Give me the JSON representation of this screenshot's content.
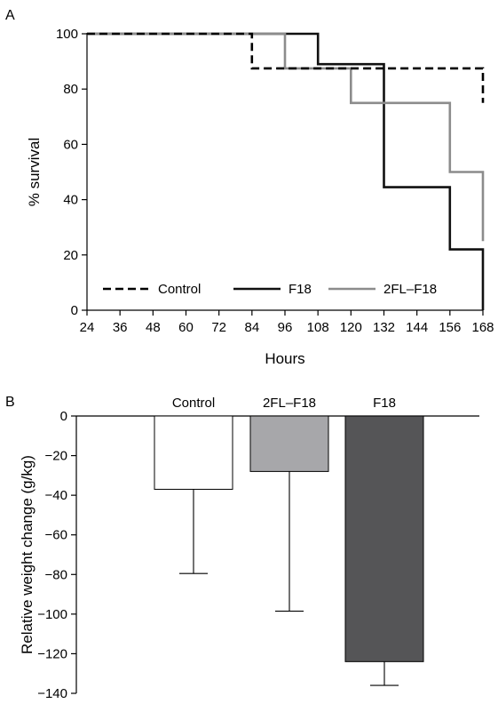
{
  "panels": [
    {
      "letter": "A",
      "chart_data": {
        "type": "line",
        "step": true,
        "xlabel": "Hours",
        "ylabel": "% survival",
        "xlim": [
          24,
          168
        ],
        "ylim": [
          0,
          100
        ],
        "xticks": [
          24,
          36,
          48,
          60,
          72,
          84,
          96,
          108,
          120,
          132,
          144,
          156,
          168
        ],
        "yticks": [
          0,
          20,
          40,
          60,
          80,
          100
        ],
        "legend_position": "bottom",
        "series": [
          {
            "name": "Control",
            "color": "#000000",
            "dash": "dashed",
            "points": [
              [
                24,
                100
              ],
              [
                84,
                100
              ],
              [
                84,
                87.5
              ],
              [
                168,
                87.5
              ],
              [
                168,
                75
              ]
            ]
          },
          {
            "name": "F18",
            "color": "#111111",
            "dash": "solid",
            "points": [
              [
                24,
                100
              ],
              [
                108,
                100
              ],
              [
                108,
                89
              ],
              [
                132,
                89
              ],
              [
                132,
                44.5
              ],
              [
                156,
                44.5
              ],
              [
                156,
                22
              ],
              [
                168,
                22
              ],
              [
                168,
                0
              ]
            ]
          },
          {
            "name": "2FL–F18",
            "color": "#8c8c8c",
            "dash": "solid",
            "points": [
              [
                24,
                100
              ],
              [
                96,
                100
              ],
              [
                96,
                87.5
              ],
              [
                120,
                87.5
              ],
              [
                120,
                75
              ],
              [
                156,
                75
              ],
              [
                156,
                50
              ],
              [
                168,
                50
              ],
              [
                168,
                25
              ]
            ]
          }
        ]
      }
    },
    {
      "letter": "B",
      "chart_data": {
        "type": "bar",
        "categories": [
          "Control",
          "2FL–F18",
          "F18"
        ],
        "values": [
          -37,
          -28,
          -124
        ],
        "errors": [
          42.5,
          70.5,
          12
        ],
        "colors": [
          "#ffffff",
          "#a7a7aa",
          "#555557"
        ],
        "ylabel": "Relative weight change (g/kg)",
        "ylim": [
          -140,
          0
        ],
        "yticks": [
          0,
          -20,
          -40,
          -60,
          -80,
          -100,
          -120,
          -140
        ],
        "category_labels_position": "top"
      }
    }
  ]
}
